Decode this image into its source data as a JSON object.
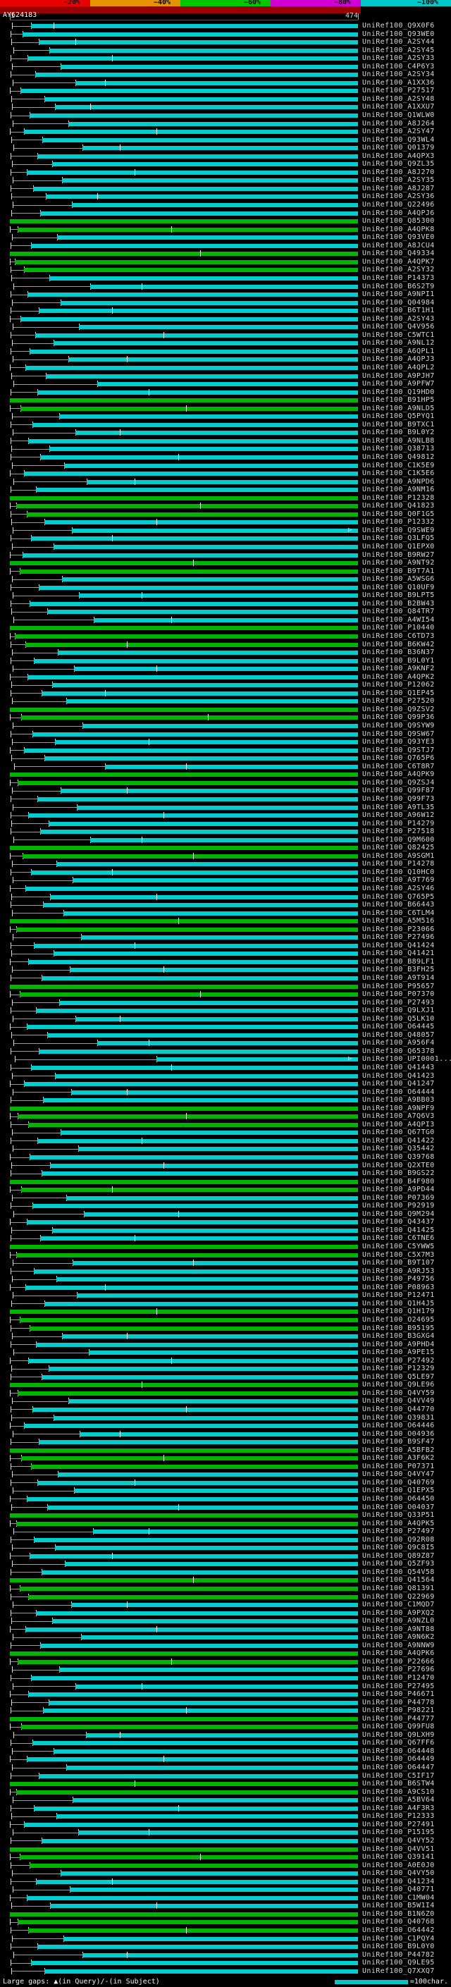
{
  "footer": {
    "gaps_legend": "Large gaps: ▲(in Query)/-(in Subject)",
    "scale_label": "=100char."
  },
  "glyphs": {
    "gap_arrow": "▷"
  },
  "chart_data": {
    "type": "alignment-overview",
    "query": {
      "name": "AY624183",
      "start": 1,
      "end": 474
    },
    "identity_scale": {
      "labels": [
        "~20%",
        "~40%",
        "~60%",
        "~80%",
        "~100%"
      ],
      "colors": [
        "#e60000",
        "#e69500",
        "#00c800",
        "#d200d2",
        "#00c8c8"
      ]
    },
    "row_colors": [
      "#00cdcd",
      "#00b400",
      "#b00000"
    ],
    "label_prefix": "UniRef100_",
    "ids": [
      "Q9X0F6",
      "Q93WE0",
      "A2SY44",
      "A2SY45",
      "A2SY33",
      "C4P6Y3",
      "A2SY34",
      "A1XX36",
      "P27517",
      "A2SY48",
      "A1XXU7",
      "Q1WLW0",
      "A8J264",
      "A2SY47",
      "Q93WL4",
      "Q01379",
      "A4QPX3",
      "Q9ZL35",
      "A8J270",
      "A2SY35",
      "A8J287",
      "A2SY36",
      "Q22496",
      "A4QPJ6",
      "Q85300",
      "A4QPK8",
      "Q93VE0",
      "A8JCU4",
      "Q49334",
      "A4QPK7",
      "A2SY32",
      "P14373",
      "B6S2T9",
      "A9NPI1",
      "Q04984",
      "B6T1H1",
      "A2SY43",
      "Q4V956",
      "C5WTC1",
      "A9NL12",
      "A6QPL1",
      "A4QPJ3",
      "A4QPL2",
      "A9PJH7",
      "A9PFW7",
      "Q19HD0",
      "B91HP5",
      "A9NLD5",
      "Q5PYQ1",
      "B9TXC1",
      "B9L0Y2",
      "A9NLB8",
      "Q38713",
      "Q49812",
      "C1K5E9",
      "C1K5E6",
      "A9NPD6",
      "A9NM16",
      "P12328",
      "Q41823",
      "Q0F1G5",
      "P12332",
      "Q9SWE9",
      "Q3LFQ5",
      "Q1EPX0",
      "B9RW27",
      "A9NT92",
      "B9T7A1",
      "A5WSG6",
      "Q10UF9",
      "B9LPT5",
      "B2BW43",
      "Q84TR7",
      "A4WI54",
      "P10440",
      "C6TD73",
      "B6KW42",
      "B36N37",
      "B9L0Y1",
      "A9KNF2",
      "A4QPK2",
      "P12062",
      "Q1EP45",
      "P27520",
      "Q9ZSV2",
      "Q99P36",
      "Q9SYW9",
      "Q9SW67",
      "Q93YE3",
      "Q9STJ7",
      "Q765P6",
      "C6T8R7",
      "A4QPK9",
      "Q9ZSJ4",
      "Q99F87",
      "Q99F73",
      "A9TL35",
      "A96W12",
      "P14279",
      "P27518",
      "Q9M600",
      "Q82425",
      "A9SGM1",
      "P14278",
      "Q10HC0",
      "A9T769",
      "A2SY46",
      "Q765P5",
      "B66443",
      "C6TLM4",
      "A5M516",
      "P23066",
      "P27496",
      "Q41424",
      "Q41421",
      "B89LF1",
      "B3FH25",
      "A9T914",
      "P95657",
      "P07370",
      "P27493",
      "Q9LXJ1",
      "Q5LK10",
      "O64445",
      "Q48057",
      "A956F4",
      "Q65378",
      "UPI0001...",
      "Q41443",
      "Q41423",
      "Q41247",
      "O64444",
      "A9BB03",
      "A9NPF9",
      "A7Q6V3",
      "A4QPI3",
      "Q67TG0",
      "Q41422",
      "Q35442",
      "Q39768",
      "Q2XTE0",
      "B9GS22",
      "B4F980",
      "A9PD44",
      "P07369",
      "P92919",
      "Q9M294",
      "Q43437",
      "Q41425",
      "C6TNE6",
      "C5YWW5",
      "C5X7M3",
      "B9T107",
      "A9RJ53",
      "P49756",
      "P08963",
      "P12471",
      "Q1H4J5",
      "Q1H179",
      "O24695",
      "B95195",
      "B3GXG4",
      "A9PHD4",
      "A9PE15",
      "P27492",
      "P12329",
      "Q5LE97",
      "Q9LE96",
      "Q4VY59",
      "Q4VV49",
      "Q44770",
      "Q39831",
      "O64446",
      "O04936",
      "B9SF47",
      "A5BFB2",
      "A3F6K2",
      "P07371",
      "Q4VY47",
      "Q40769",
      "Q1EPX5",
      "O64450",
      "O04037",
      "Q33P51",
      "A4QPK5",
      "P27497",
      "Q92R08",
      "Q9C8I5",
      "Q89Z87",
      "Q5ZF93",
      "Q54V58",
      "Q41564",
      "Q81391",
      "Q22969",
      "C1MQD7",
      "A9PXQ2",
      "A9NZL0",
      "A9NT88",
      "A9N6K2",
      "A9NNW9",
      "A4QPK6",
      "P22666",
      "P27696",
      "P12470",
      "P27495",
      "P46671",
      "P44778",
      "P98221",
      "P44777",
      "Q99FU8",
      "Q9LXH9",
      "Q67FF6",
      "O64448",
      "O64449",
      "O64447",
      "C5IF17",
      "B6STW4",
      "A9CS10",
      "A5BV64",
      "A4F3R3",
      "P12333",
      "P27491",
      "P15195",
      "Q4VY52",
      "Q4VV51",
      "Q39141",
      "A0E0J0",
      "Q4VY50",
      "Q41234",
      "Q40771",
      "C1MW04",
      "B5W1I4",
      "B1N6Z0",
      "Q40768",
      "O64442",
      "C1PQY4",
      "B9L0Y0",
      "P44782",
      "Q9LE95",
      "Q7XXQ7"
    ],
    "rows": [
      [
        30,
        0,
        4,
        [
          60
        ]
      ],
      [
        18,
        0,
        2
      ],
      [
        40,
        0,
        3,
        [
          90
        ]
      ],
      [
        55,
        0,
        6
      ],
      [
        25,
        0,
        2,
        [
          140
        ]
      ],
      [
        70,
        0,
        4
      ],
      [
        35,
        0,
        2
      ],
      [
        90,
        0,
        5,
        [
          130
        ]
      ],
      [
        15,
        0,
        1
      ],
      [
        48,
        0,
        3
      ],
      [
        62,
        0,
        4,
        [
          110
        ]
      ],
      [
        28,
        0,
        2
      ],
      [
        80,
        0,
        5
      ],
      [
        20,
        0,
        1,
        [
          200
        ]
      ],
      [
        45,
        0,
        3
      ],
      [
        100,
        0,
        6,
        [
          150
        ]
      ],
      [
        38,
        0,
        2
      ],
      [
        58,
        0,
        4
      ],
      [
        24,
        0,
        2,
        [
          170
        ]
      ],
      [
        72,
        0,
        5
      ],
      [
        33,
        0,
        2
      ],
      [
        50,
        0,
        3,
        [
          120
        ]
      ],
      [
        85,
        0,
        5
      ],
      [
        42,
        0,
        3
      ],
      [
        1,
        1,
        0
      ],
      [
        12,
        1,
        1,
        [
          220
        ]
      ],
      [
        65,
        0,
        4
      ],
      [
        30,
        0,
        2
      ],
      [
        1,
        1,
        0,
        [
          260
        ]
      ],
      [
        8,
        1,
        1
      ],
      [
        20,
        1,
        2
      ],
      [
        55,
        0,
        3
      ],
      [
        110,
        0,
        6,
        [
          180
        ]
      ],
      [
        25,
        0,
        2
      ],
      [
        70,
        0,
        4
      ],
      [
        40,
        0,
        2,
        [
          140
        ]
      ],
      [
        15,
        0,
        1
      ],
      [
        95,
        0,
        5
      ],
      [
        35,
        0,
        2,
        [
          210
        ]
      ],
      [
        60,
        0,
        4
      ],
      [
        28,
        0,
        2
      ],
      [
        80,
        0,
        5,
        [
          160
        ]
      ],
      [
        22,
        0,
        1
      ],
      [
        50,
        0,
        3
      ],
      [
        120,
        0,
        6
      ],
      [
        38,
        0,
        2,
        [
          190
        ]
      ],
      [
        1,
        1,
        0
      ],
      [
        15,
        1,
        1,
        [
          240
        ]
      ],
      [
        68,
        0,
        4
      ],
      [
        32,
        0,
        2
      ],
      [
        90,
        0,
        5,
        [
          150
        ]
      ],
      [
        26,
        0,
        2
      ],
      [
        55,
        0,
        3
      ],
      [
        42,
        0,
        2,
        [
          230
        ]
      ],
      [
        75,
        0,
        4
      ],
      [
        20,
        0,
        1
      ],
      [
        105,
        0,
        6,
        [
          170
        ]
      ],
      [
        36,
        0,
        2
      ],
      [
        1,
        1,
        0
      ],
      [
        10,
        1,
        1,
        [
          260
        ]
      ],
      [
        24,
        1,
        2
      ],
      [
        48,
        0,
        3,
        [
          200
        ]
      ],
      [
        85,
        0,
        5,
        [],
        474,
        1
      ],
      [
        30,
        0,
        2,
        [
          140
        ]
      ],
      [
        60,
        0,
        4
      ],
      [
        18,
        0,
        1
      ],
      [
        1,
        1,
        0,
        [
          250
        ]
      ],
      [
        14,
        1,
        1
      ],
      [
        72,
        0,
        4
      ],
      [
        40,
        0,
        2
      ],
      [
        95,
        0,
        5,
        [
          180
        ]
      ],
      [
        28,
        0,
        2
      ],
      [
        52,
        0,
        3
      ],
      [
        115,
        0,
        6,
        [
          220
        ]
      ],
      [
        1,
        1,
        0
      ],
      [
        8,
        1,
        1
      ],
      [
        22,
        1,
        2,
        [
          160
        ]
      ],
      [
        66,
        0,
        4
      ],
      [
        34,
        0,
        2
      ],
      [
        88,
        0,
        5,
        [
          200
        ]
      ],
      [
        25,
        0,
        1
      ],
      [
        58,
        0,
        3
      ],
      [
        44,
        0,
        2,
        [
          130
        ]
      ],
      [
        78,
        0,
        4
      ],
      [
        1,
        1,
        0
      ],
      [
        16,
        1,
        1,
        [
          270
        ]
      ],
      [
        100,
        0,
        5
      ],
      [
        32,
        0,
        2
      ],
      [
        62,
        0,
        4,
        [
          190
        ]
      ],
      [
        20,
        0,
        1
      ],
      [
        48,
        0,
        3
      ],
      [
        130,
        0,
        7,
        [
          240
        ]
      ],
      [
        1,
        1,
        0
      ],
      [
        12,
        1,
        1
      ],
      [
        70,
        0,
        4,
        [
          160
        ]
      ],
      [
        38,
        0,
        2
      ],
      [
        92,
        0,
        5
      ],
      [
        26,
        0,
        2,
        [
          210
        ]
      ],
      [
        54,
        0,
        3
      ],
      [
        42,
        0,
        2
      ],
      [
        110,
        0,
        6,
        [
          180
        ]
      ],
      [
        1,
        1,
        0
      ],
      [
        18,
        1,
        1,
        [
          250
        ]
      ],
      [
        64,
        0,
        4
      ],
      [
        30,
        0,
        2,
        [
          140
        ]
      ],
      [
        86,
        0,
        5
      ],
      [
        22,
        0,
        1
      ],
      [
        56,
        0,
        3,
        [
          200
        ]
      ],
      [
        46,
        0,
        2
      ],
      [
        74,
        0,
        4
      ],
      [
        1,
        1,
        0,
        [
          230
        ]
      ],
      [
        10,
        1,
        1
      ],
      [
        98,
        0,
        5
      ],
      [
        34,
        0,
        2,
        [
          170
        ]
      ],
      [
        60,
        0,
        3
      ],
      [
        26,
        0,
        1
      ],
      [
        82,
        0,
        4,
        [
          210
        ]
      ],
      [
        44,
        0,
        2
      ],
      [
        1,
        1,
        0
      ],
      [
        14,
        1,
        1,
        [
          260
        ]
      ],
      [
        68,
        0,
        4
      ],
      [
        36,
        0,
        2
      ],
      [
        90,
        0,
        5,
        [
          150
        ]
      ],
      [
        24,
        0,
        1
      ],
      [
        52,
        0,
        3
      ],
      [
        120,
        0,
        6,
        [
          190
        ]
      ],
      [
        40,
        0,
        2
      ],
      [
        200,
        0,
        8,
        [],
        474,
        1
      ],
      [
        30,
        0,
        2,
        [
          220
        ]
      ],
      [
        62,
        0,
        4
      ],
      [
        20,
        0,
        1
      ],
      [
        84,
        0,
        5,
        [
          160
        ]
      ],
      [
        46,
        0,
        2
      ],
      [
        1,
        1,
        0
      ],
      [
        12,
        1,
        1,
        [
          240
        ]
      ],
      [
        26,
        1,
        2
      ],
      [
        70,
        0,
        4
      ],
      [
        38,
        0,
        2,
        [
          180
        ]
      ],
      [
        94,
        0,
        5
      ],
      [
        28,
        0,
        1
      ],
      [
        56,
        0,
        3,
        [
          210
        ]
      ],
      [
        44,
        0,
        2
      ],
      [
        1,
        1,
        0
      ],
      [
        16,
        1,
        1,
        [
          140
        ]
      ],
      [
        78,
        0,
        4
      ],
      [
        32,
        0,
        2
      ],
      [
        102,
        0,
        6,
        [
          230
        ]
      ],
      [
        24,
        0,
        1
      ],
      [
        58,
        0,
        3
      ],
      [
        42,
        0,
        2,
        [
          170
        ]
      ],
      [
        1,
        1,
        0
      ],
      [
        10,
        1,
        1
      ],
      [
        86,
        0,
        5,
        [
          250
        ]
      ],
      [
        34,
        0,
        2
      ],
      [
        64,
        0,
        4
      ],
      [
        22,
        0,
        1,
        [
          130
        ]
      ],
      [
        92,
        0,
        5
      ],
      [
        48,
        0,
        3
      ],
      [
        1,
        1,
        0,
        [
          200
        ]
      ],
      [
        14,
        1,
        1
      ],
      [
        28,
        1,
        2
      ],
      [
        72,
        0,
        4,
        [
          160
        ]
      ],
      [
        36,
        0,
        2
      ],
      [
        108,
        0,
        6
      ],
      [
        26,
        0,
        1,
        [
          220
        ]
      ],
      [
        54,
        0,
        3
      ],
      [
        44,
        0,
        2
      ],
      [
        1,
        1,
        0,
        [
          180
        ]
      ],
      [
        12,
        1,
        1
      ],
      [
        80,
        0,
        4
      ],
      [
        32,
        0,
        2,
        [
          240
        ]
      ],
      [
        60,
        0,
        3
      ],
      [
        20,
        0,
        1
      ],
      [
        96,
        0,
        5,
        [
          150
        ]
      ],
      [
        40,
        0,
        2
      ],
      [
        1,
        1,
        0
      ],
      [
        16,
        1,
        1,
        [
          210
        ]
      ],
      [
        30,
        1,
        2
      ],
      [
        66,
        0,
        4
      ],
      [
        38,
        0,
        2,
        [
          170
        ]
      ],
      [
        88,
        0,
        5
      ],
      [
        24,
        0,
        1
      ],
      [
        52,
        0,
        3,
        [
          230
        ]
      ],
      [
        1,
        1,
        0
      ],
      [
        10,
        1,
        1
      ],
      [
        114,
        0,
        6,
        [
          190
        ]
      ],
      [
        34,
        0,
        2
      ],
      [
        62,
        0,
        4
      ],
      [
        28,
        0,
        1,
        [
          140
        ]
      ],
      [
        76,
        0,
        4
      ],
      [
        44,
        0,
        2
      ],
      [
        1,
        1,
        0,
        [
          250
        ]
      ],
      [
        14,
        1,
        1
      ],
      [
        26,
        1,
        2
      ],
      [
        84,
        0,
        5,
        [
          160
        ]
      ],
      [
        36,
        0,
        2
      ],
      [
        58,
        0,
        3
      ],
      [
        22,
        0,
        1,
        [
          200
        ]
      ],
      [
        98,
        0,
        5
      ],
      [
        42,
        0,
        2
      ],
      [
        1,
        1,
        0
      ],
      [
        12,
        1,
        1,
        [
          220
        ]
      ],
      [
        68,
        0,
        4
      ],
      [
        30,
        0,
        2
      ],
      [
        90,
        0,
        5,
        [
          180
        ]
      ],
      [
        26,
        0,
        1
      ],
      [
        54,
        0,
        3
      ],
      [
        46,
        0,
        2,
        [
          240
        ]
      ],
      [
        1,
        1,
        0
      ],
      [
        16,
        1,
        1
      ],
      [
        104,
        0,
        6,
        [
          150
        ]
      ],
      [
        32,
        0,
        2
      ],
      [
        60,
        0,
        4
      ],
      [
        24,
        0,
        1,
        [
          210
        ]
      ],
      [
        78,
        0,
        4
      ],
      [
        40,
        0,
        2
      ],
      [
        1,
        1,
        0,
        [
          170
        ]
      ],
      [
        10,
        1,
        1
      ],
      [
        86,
        0,
        5
      ],
      [
        34,
        0,
        2,
        [
          230
        ]
      ],
      [
        64,
        0,
        3
      ],
      [
        20,
        0,
        1
      ],
      [
        94,
        0,
        5,
        [
          190
        ]
      ],
      [
        44,
        0,
        2
      ],
      [
        1,
        1,
        0
      ],
      [
        14,
        1,
        1,
        [
          260
        ]
      ],
      [
        28,
        1,
        2
      ],
      [
        70,
        0,
        4
      ],
      [
        36,
        0,
        2,
        [
          140
        ]
      ],
      [
        82,
        0,
        5
      ],
      [
        24,
        0,
        1
      ],
      [
        56,
        0,
        3,
        [
          200
        ]
      ],
      [
        1,
        1,
        0
      ],
      [
        12,
        1,
        1
      ],
      [
        26,
        1,
        2,
        [
          240
        ]
      ],
      [
        74,
        0,
        4
      ],
      [
        38,
        0,
        2
      ],
      [
        100,
        0,
        6,
        [
          160
        ]
      ],
      [
        30,
        0,
        2
      ],
      [
        48,
        0,
        3
      ]
    ]
  }
}
